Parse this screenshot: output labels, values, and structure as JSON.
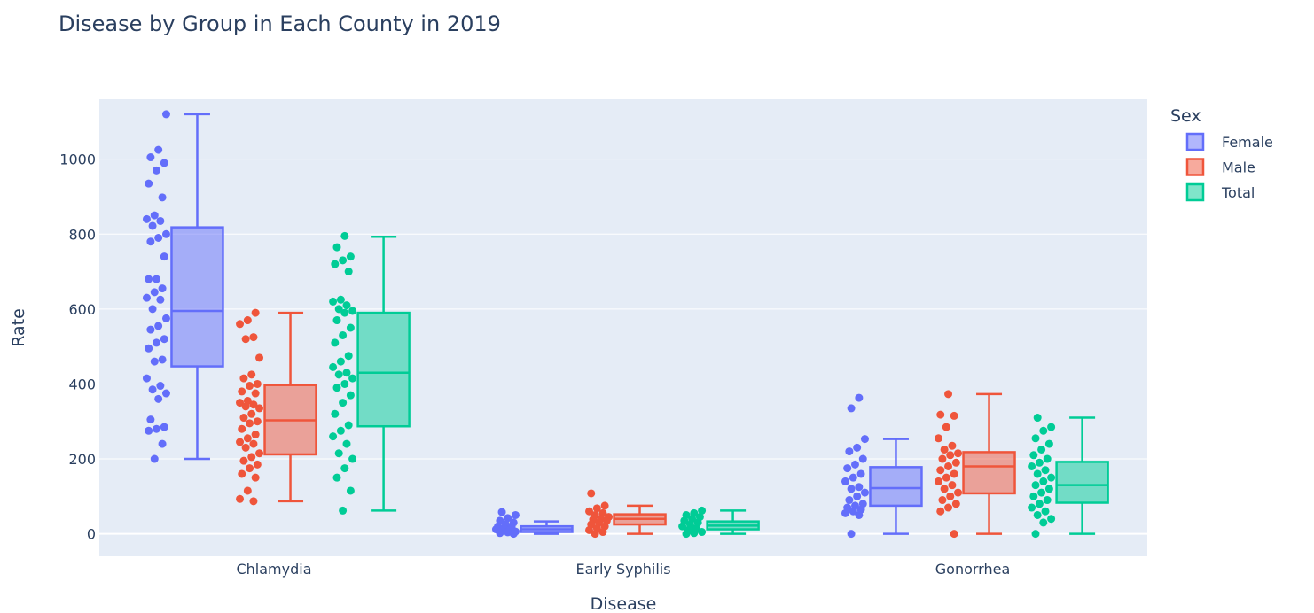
{
  "chart_data": {
    "type": "box",
    "title": "Disease by Group in Each County in 2019",
    "xlabel": "Disease",
    "ylabel": "Rate",
    "categories": [
      "Chlamydia",
      "Early Syphilis",
      "Gonorrhea"
    ],
    "ylim": [
      -60,
      1160
    ],
    "yticks": [
      0,
      200,
      400,
      600,
      800,
      1000
    ],
    "legend": {
      "title": "Sex",
      "placement": "top-right"
    },
    "series": [
      {
        "name": "Female",
        "color": "#636efa",
        "boxes": [
          {
            "min": 200,
            "q1": 447,
            "median": 595,
            "q3": 818,
            "max": 1120
          },
          {
            "min": 0,
            "q1": 5,
            "median": 12,
            "q3": 20,
            "max": 33
          },
          {
            "min": 0,
            "q1": 75,
            "median": 122,
            "q3": 178,
            "max": 253
          }
        ],
        "points": [
          [
            1120,
            1025,
            1005,
            990,
            970,
            935,
            898,
            850,
            840,
            835,
            822,
            800,
            790,
            780,
            740,
            680,
            680,
            655,
            645,
            630,
            625,
            600,
            575,
            555,
            545,
            520,
            510,
            495,
            465,
            460,
            415,
            395,
            385,
            375,
            360,
            305,
            285,
            280,
            275,
            240,
            200
          ],
          [
            58,
            50,
            42,
            35,
            30,
            25,
            20,
            18,
            15,
            12,
            10,
            8,
            6,
            4,
            2,
            0
          ],
          [
            363,
            335,
            253,
            230,
            220,
            200,
            185,
            175,
            160,
            150,
            140,
            125,
            120,
            110,
            100,
            90,
            80,
            75,
            70,
            65,
            60,
            55,
            50,
            0
          ]
        ]
      },
      {
        "name": "Male",
        "color": "#EF553B",
        "boxes": [
          {
            "min": 87,
            "q1": 212,
            "median": 303,
            "q3": 397,
            "max": 590
          },
          {
            "min": 0,
            "q1": 25,
            "median": 40,
            "q3": 52,
            "max": 75
          },
          {
            "min": 0,
            "q1": 108,
            "median": 180,
            "q3": 218,
            "max": 373
          }
        ],
        "points": [
          [
            590,
            570,
            560,
            525,
            520,
            470,
            425,
            415,
            400,
            395,
            380,
            375,
            355,
            350,
            345,
            340,
            335,
            320,
            310,
            300,
            295,
            280,
            265,
            255,
            245,
            240,
            230,
            215,
            205,
            195,
            185,
            175,
            160,
            150,
            115,
            93,
            87
          ],
          [
            108,
            75,
            68,
            60,
            55,
            50,
            45,
            40,
            38,
            35,
            30,
            25,
            20,
            15,
            10,
            5,
            0
          ],
          [
            373,
            318,
            315,
            285,
            255,
            235,
            225,
            215,
            210,
            200,
            190,
            180,
            170,
            160,
            150,
            140,
            130,
            120,
            110,
            100,
            90,
            80,
            70,
            60,
            0
          ]
        ]
      },
      {
        "name": "Total",
        "color": "#00cc96",
        "boxes": [
          {
            "min": 62,
            "q1": 287,
            "median": 430,
            "q3": 590,
            "max": 793
          },
          {
            "min": 0,
            "q1": 12,
            "median": 22,
            "q3": 33,
            "max": 62
          },
          {
            "min": 0,
            "q1": 83,
            "median": 130,
            "q3": 192,
            "max": 310
          }
        ],
        "points": [
          [
            795,
            765,
            740,
            730,
            720,
            700,
            625,
            620,
            610,
            600,
            595,
            590,
            570,
            550,
            530,
            510,
            475,
            460,
            445,
            430,
            425,
            415,
            400,
            390,
            370,
            350,
            320,
            290,
            275,
            260,
            240,
            215,
            200,
            175,
            150,
            115,
            62
          ],
          [
            62,
            55,
            50,
            45,
            40,
            35,
            30,
            25,
            20,
            15,
            10,
            5,
            2,
            0
          ],
          [
            310,
            285,
            275,
            255,
            240,
            225,
            210,
            200,
            190,
            180,
            170,
            160,
            150,
            140,
            130,
            120,
            110,
            100,
            90,
            80,
            70,
            60,
            50,
            40,
            30,
            0
          ]
        ]
      }
    ]
  }
}
